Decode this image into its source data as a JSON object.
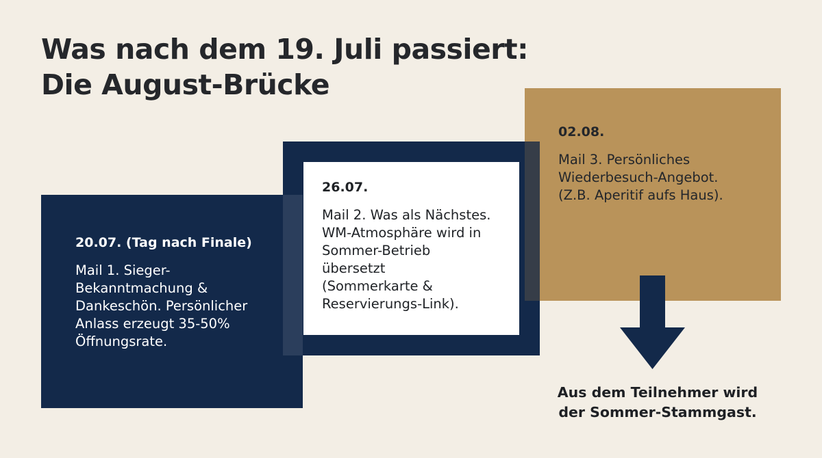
{
  "title": {
    "line1": "Was nach dem 19. Juli passiert:",
    "line2": "Die August-Brücke"
  },
  "steps": [
    {
      "date": "20.07. (Tag nach Finale)",
      "lines": [
        "Mail 1. Sieger-",
        "Bekanntmachung &",
        "Dankeschön. Persönlicher",
        "Anlass erzeugt 35-50%",
        "Öffnungsrate."
      ]
    },
    {
      "date": "26.07.",
      "lines": [
        "Mail 2. Was als Nächstes.",
        "WM-Atmosphäre wird in",
        "Sommer-Betrieb",
        "übersetzt",
        "(Sommerkarte &",
        "Reservierungs-Link)."
      ]
    },
    {
      "date": "02.08.",
      "lines": [
        "Mail 3. Persönliches",
        "Wiederbesuch-Angebot.",
        "(Z.B. Aperitif aufs Haus)."
      ]
    }
  ],
  "conclusion": {
    "line1": "Aus dem Teilnehmer wird",
    "line2": "der Sommer-Stammgast."
  },
  "colors": {
    "background": "#f3eee5",
    "navy": "#13294a",
    "gold": "#b9935a",
    "white": "#ffffff"
  },
  "icons": {
    "arrow": "arrow-down-icon"
  }
}
